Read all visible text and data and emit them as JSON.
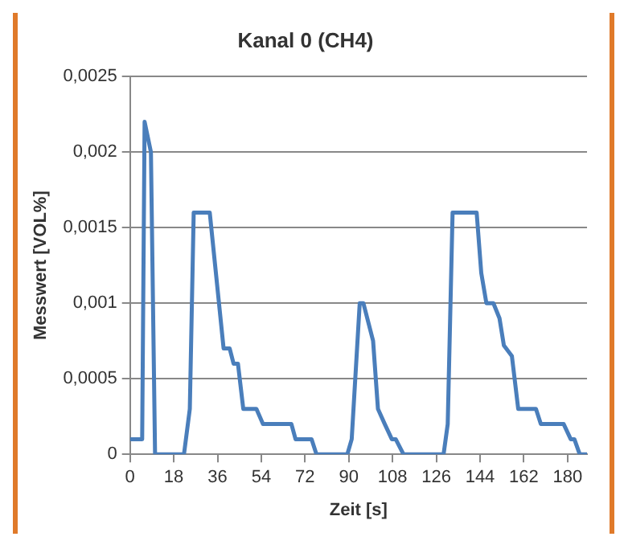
{
  "chart_data": {
    "type": "line",
    "title": "Kanal 0 (CH4)",
    "xlabel": "Zeit [s]",
    "ylabel": "Messwert [VOL%]",
    "x": [
      0,
      5,
      6,
      8.6,
      10.3,
      22.2,
      24.6,
      26.2,
      32.8,
      38.5,
      41,
      42.6,
      44.4,
      46.6,
      52,
      54.7,
      66.4,
      68.1,
      74.7,
      76.7,
      89.4,
      91.2,
      94.5,
      96,
      100,
      102,
      104.8,
      107.7,
      109.3,
      112.5,
      129,
      130.7,
      132.7,
      142.6,
      144.5,
      146.6,
      149.5,
      152,
      153.8,
      157.1,
      159.7,
      167,
      169,
      178.4,
      181.3,
      182.8,
      185,
      188
    ],
    "series": [
      {
        "color": "#4a7ebb",
        "values": [
          0.0001,
          0.0001,
          0.0022,
          0.002,
          0,
          0,
          0.0003,
          0.0016,
          0.0016,
          0.0007,
          0.0007,
          0.0006,
          0.0006,
          0.0003,
          0.0003,
          0.0002,
          0.0002,
          0.0001,
          0.0001,
          0,
          0,
          0.0001,
          0.001,
          0.001,
          0.00075,
          0.0003,
          0.0002,
          0.0001,
          0.0001,
          0,
          0,
          0.0002,
          0.0016,
          0.0016,
          0.0012,
          0.001,
          0.001,
          0.0009,
          0.00072,
          0.00065,
          0.0003,
          0.0003,
          0.0002,
          0.0002,
          0.0001,
          0.0001,
          0,
          0
        ]
      }
    ],
    "xlim": [
      0,
      188
    ],
    "xticks": [
      0,
      18,
      36,
      54,
      72,
      90,
      108,
      126,
      144,
      162,
      180
    ],
    "ylim": [
      0,
      0.0025
    ],
    "yticks": [
      {
        "value": 0,
        "label": "0"
      },
      {
        "value": 0.0005,
        "label": "0,0005"
      },
      {
        "value": 0.001,
        "label": "0,001"
      },
      {
        "value": 0.0015,
        "label": "0,0015"
      },
      {
        "value": 0.002,
        "label": "0,002"
      },
      {
        "value": 0.0025,
        "label": "0,0025"
      }
    ],
    "grid": "y",
    "legend": false,
    "marker": "none",
    "line_style": "solid"
  }
}
